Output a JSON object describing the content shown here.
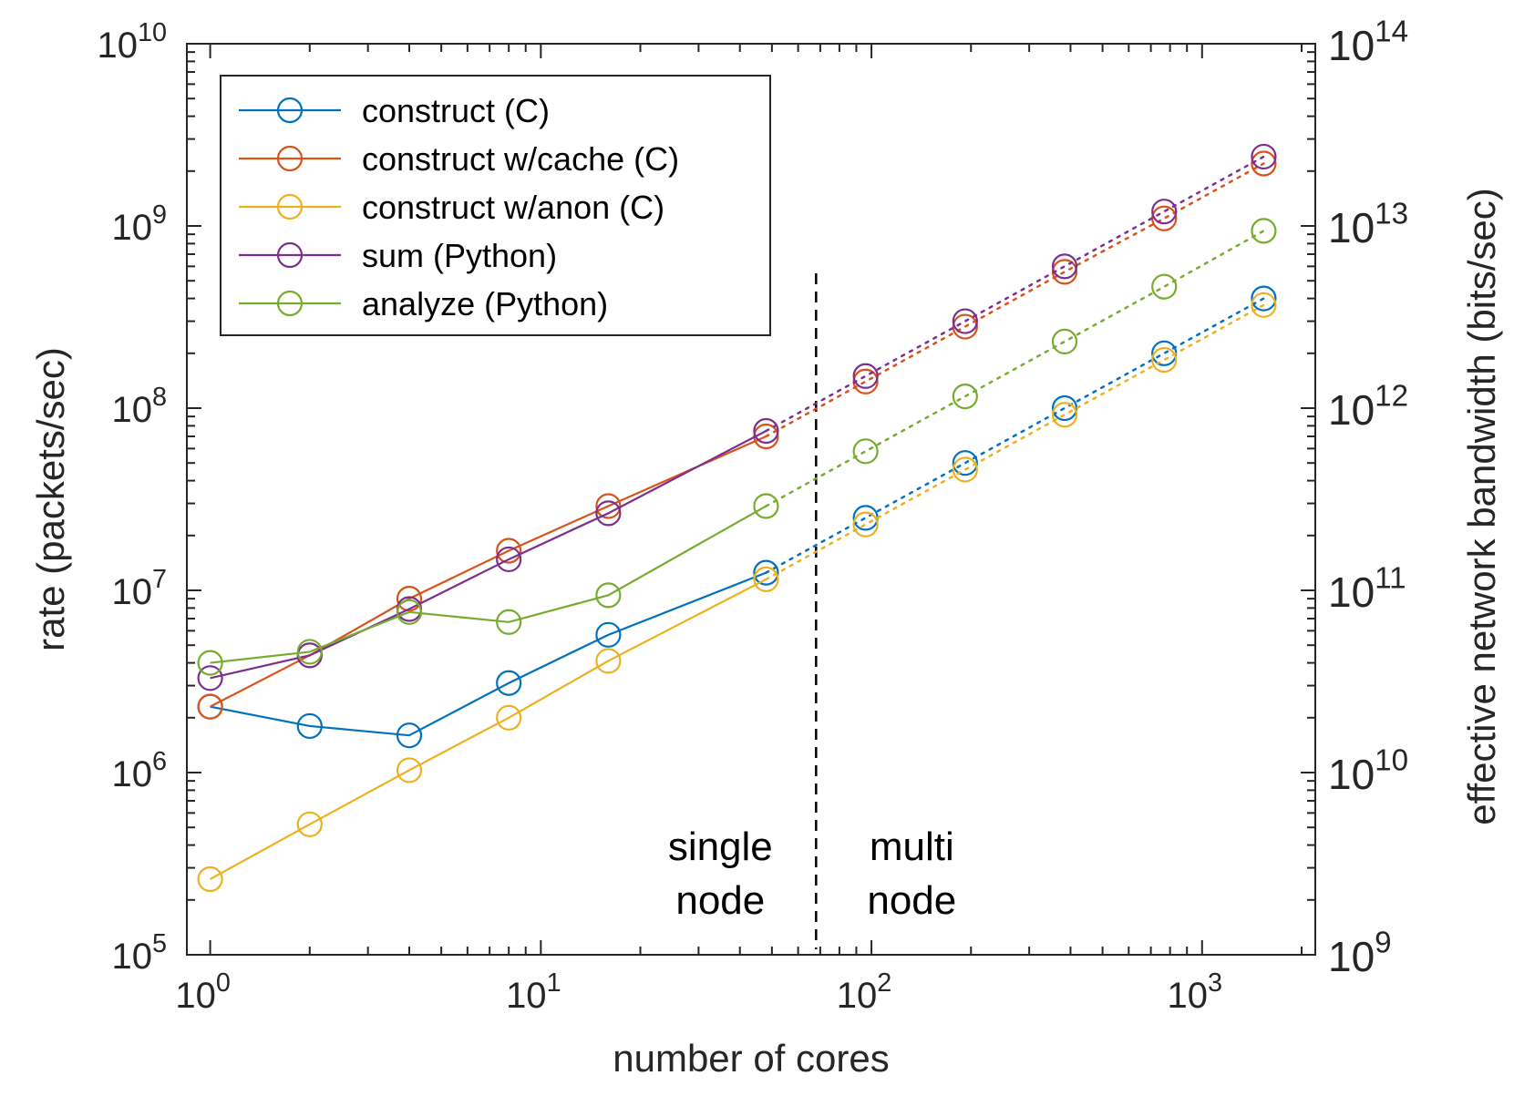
{
  "chart_data": {
    "type": "line",
    "xscale": "log",
    "yscale": "log",
    "xlabel": "number of cores",
    "ylabel": "rate (packets/sec)",
    "ylabel_right": "effective network bandwidth (bits/sec)",
    "xlim": [
      0.85,
      2200
    ],
    "ylim": [
      100000,
      10000000000
    ],
    "ylim_right": [
      1000000000,
      100000000000000
    ],
    "x_ticks": [
      {
        "value": 1,
        "base": "10",
        "exp": "0"
      },
      {
        "value": 10,
        "base": "10",
        "exp": "1"
      },
      {
        "value": 100,
        "base": "10",
        "exp": "2"
      },
      {
        "value": 1000,
        "base": "10",
        "exp": "3"
      }
    ],
    "y_ticks": [
      {
        "value": 100000,
        "base": "10",
        "exp": "5"
      },
      {
        "value": 1000000,
        "base": "10",
        "exp": "6"
      },
      {
        "value": 10000000,
        "base": "10",
        "exp": "7"
      },
      {
        "value": 100000000,
        "base": "10",
        "exp": "8"
      },
      {
        "value": 1000000000,
        "base": "10",
        "exp": "9"
      },
      {
        "value": 10000000000,
        "base": "10",
        "exp": "10"
      }
    ],
    "y_ticks_right": [
      {
        "value": 1000000000,
        "base": "10",
        "exp": "9"
      },
      {
        "value": 10000000000,
        "base": "10",
        "exp": "10"
      },
      {
        "value": 100000000000,
        "base": "10",
        "exp": "11"
      },
      {
        "value": 1000000000000,
        "base": "10",
        "exp": "12"
      },
      {
        "value": 10000000000000,
        "base": "10",
        "exp": "13"
      },
      {
        "value": 100000000000000,
        "base": "10",
        "exp": "14"
      }
    ],
    "x": [
      1,
      2,
      4,
      8,
      16,
      48,
      96,
      192,
      384,
      768,
      1536
    ],
    "solid_segment_count": 6,
    "series": [
      {
        "name": "construct (C)",
        "color": "#0072BD",
        "values": [
          2300000,
          1800000,
          1600000,
          3100000,
          5700000,
          12500000,
          25000000,
          50000000,
          100000000,
          200000000,
          400000000
        ]
      },
      {
        "name": "construct w/cache (C)",
        "color": "#D95319",
        "values": [
          2300000,
          4400000,
          9000000,
          16500000,
          29000000,
          70000000,
          140000000,
          280000000,
          560000000,
          1100000000,
          2200000000
        ]
      },
      {
        "name": "construct w/anon (C)",
        "color": "#EDB120",
        "values": [
          260000,
          520000,
          1030000,
          2000000,
          4100000,
          11500000,
          23000000,
          46000000,
          92000000,
          184000000,
          368000000
        ]
      },
      {
        "name": "sum (Python)",
        "color": "#7E2F8E",
        "values": [
          3300000,
          4400000,
          7900000,
          14800000,
          26500000,
          75000000,
          150000000,
          300000000,
          600000000,
          1200000000,
          2400000000
        ]
      },
      {
        "name": "analyze (Python)",
        "color": "#77AC30",
        "values": [
          4000000,
          4600000,
          7600000,
          6700000,
          9400000,
          29000000,
          58000000,
          116000000,
          232000000,
          464000000,
          940000000
        ]
      }
    ],
    "divider_x": 68,
    "annotations": [
      {
        "lines": [
          "single",
          "node"
        ]
      },
      {
        "lines": [
          "multi",
          "node"
        ]
      }
    ],
    "legend_position": "top-left"
  }
}
